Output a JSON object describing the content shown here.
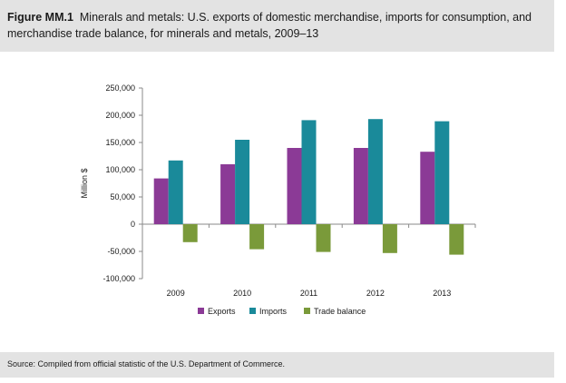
{
  "figure": {
    "label": "Figure MM.1",
    "title": "Minerals and metals: U.S. exports of domestic merchandise, imports for consumption, and merchandise trade balance, for minerals and metals, 2009–13"
  },
  "source": "Source: Compiled from official statistic of the U.S. Department of Commerce.",
  "chart_data": {
    "type": "bar",
    "categories": [
      "2009",
      "2010",
      "2011",
      "2012",
      "2013"
    ],
    "series": [
      {
        "name": "Exports",
        "color": "#8b3a96",
        "values": [
          84000,
          110000,
          140000,
          140000,
          133000
        ]
      },
      {
        "name": "Imports",
        "color": "#1a8a9a",
        "values": [
          117000,
          155000,
          191000,
          193000,
          189000
        ]
      },
      {
        "name": "Trade balance",
        "color": "#7a9a3a",
        "values": [
          -33000,
          -46000,
          -51000,
          -53000,
          -56000
        ]
      }
    ],
    "ylabel": "Million $",
    "xlabel": "",
    "ylim": [
      -100000,
      250000
    ],
    "yticks": [
      250000,
      200000,
      150000,
      100000,
      50000,
      0,
      -50000,
      -100000
    ],
    "ytick_labels": [
      "250,000",
      "200,000",
      "150,000",
      "100,000",
      "50,000",
      "0",
      "-50,000",
      "-100,000"
    ],
    "grid": false,
    "legend_position": "bottom"
  }
}
